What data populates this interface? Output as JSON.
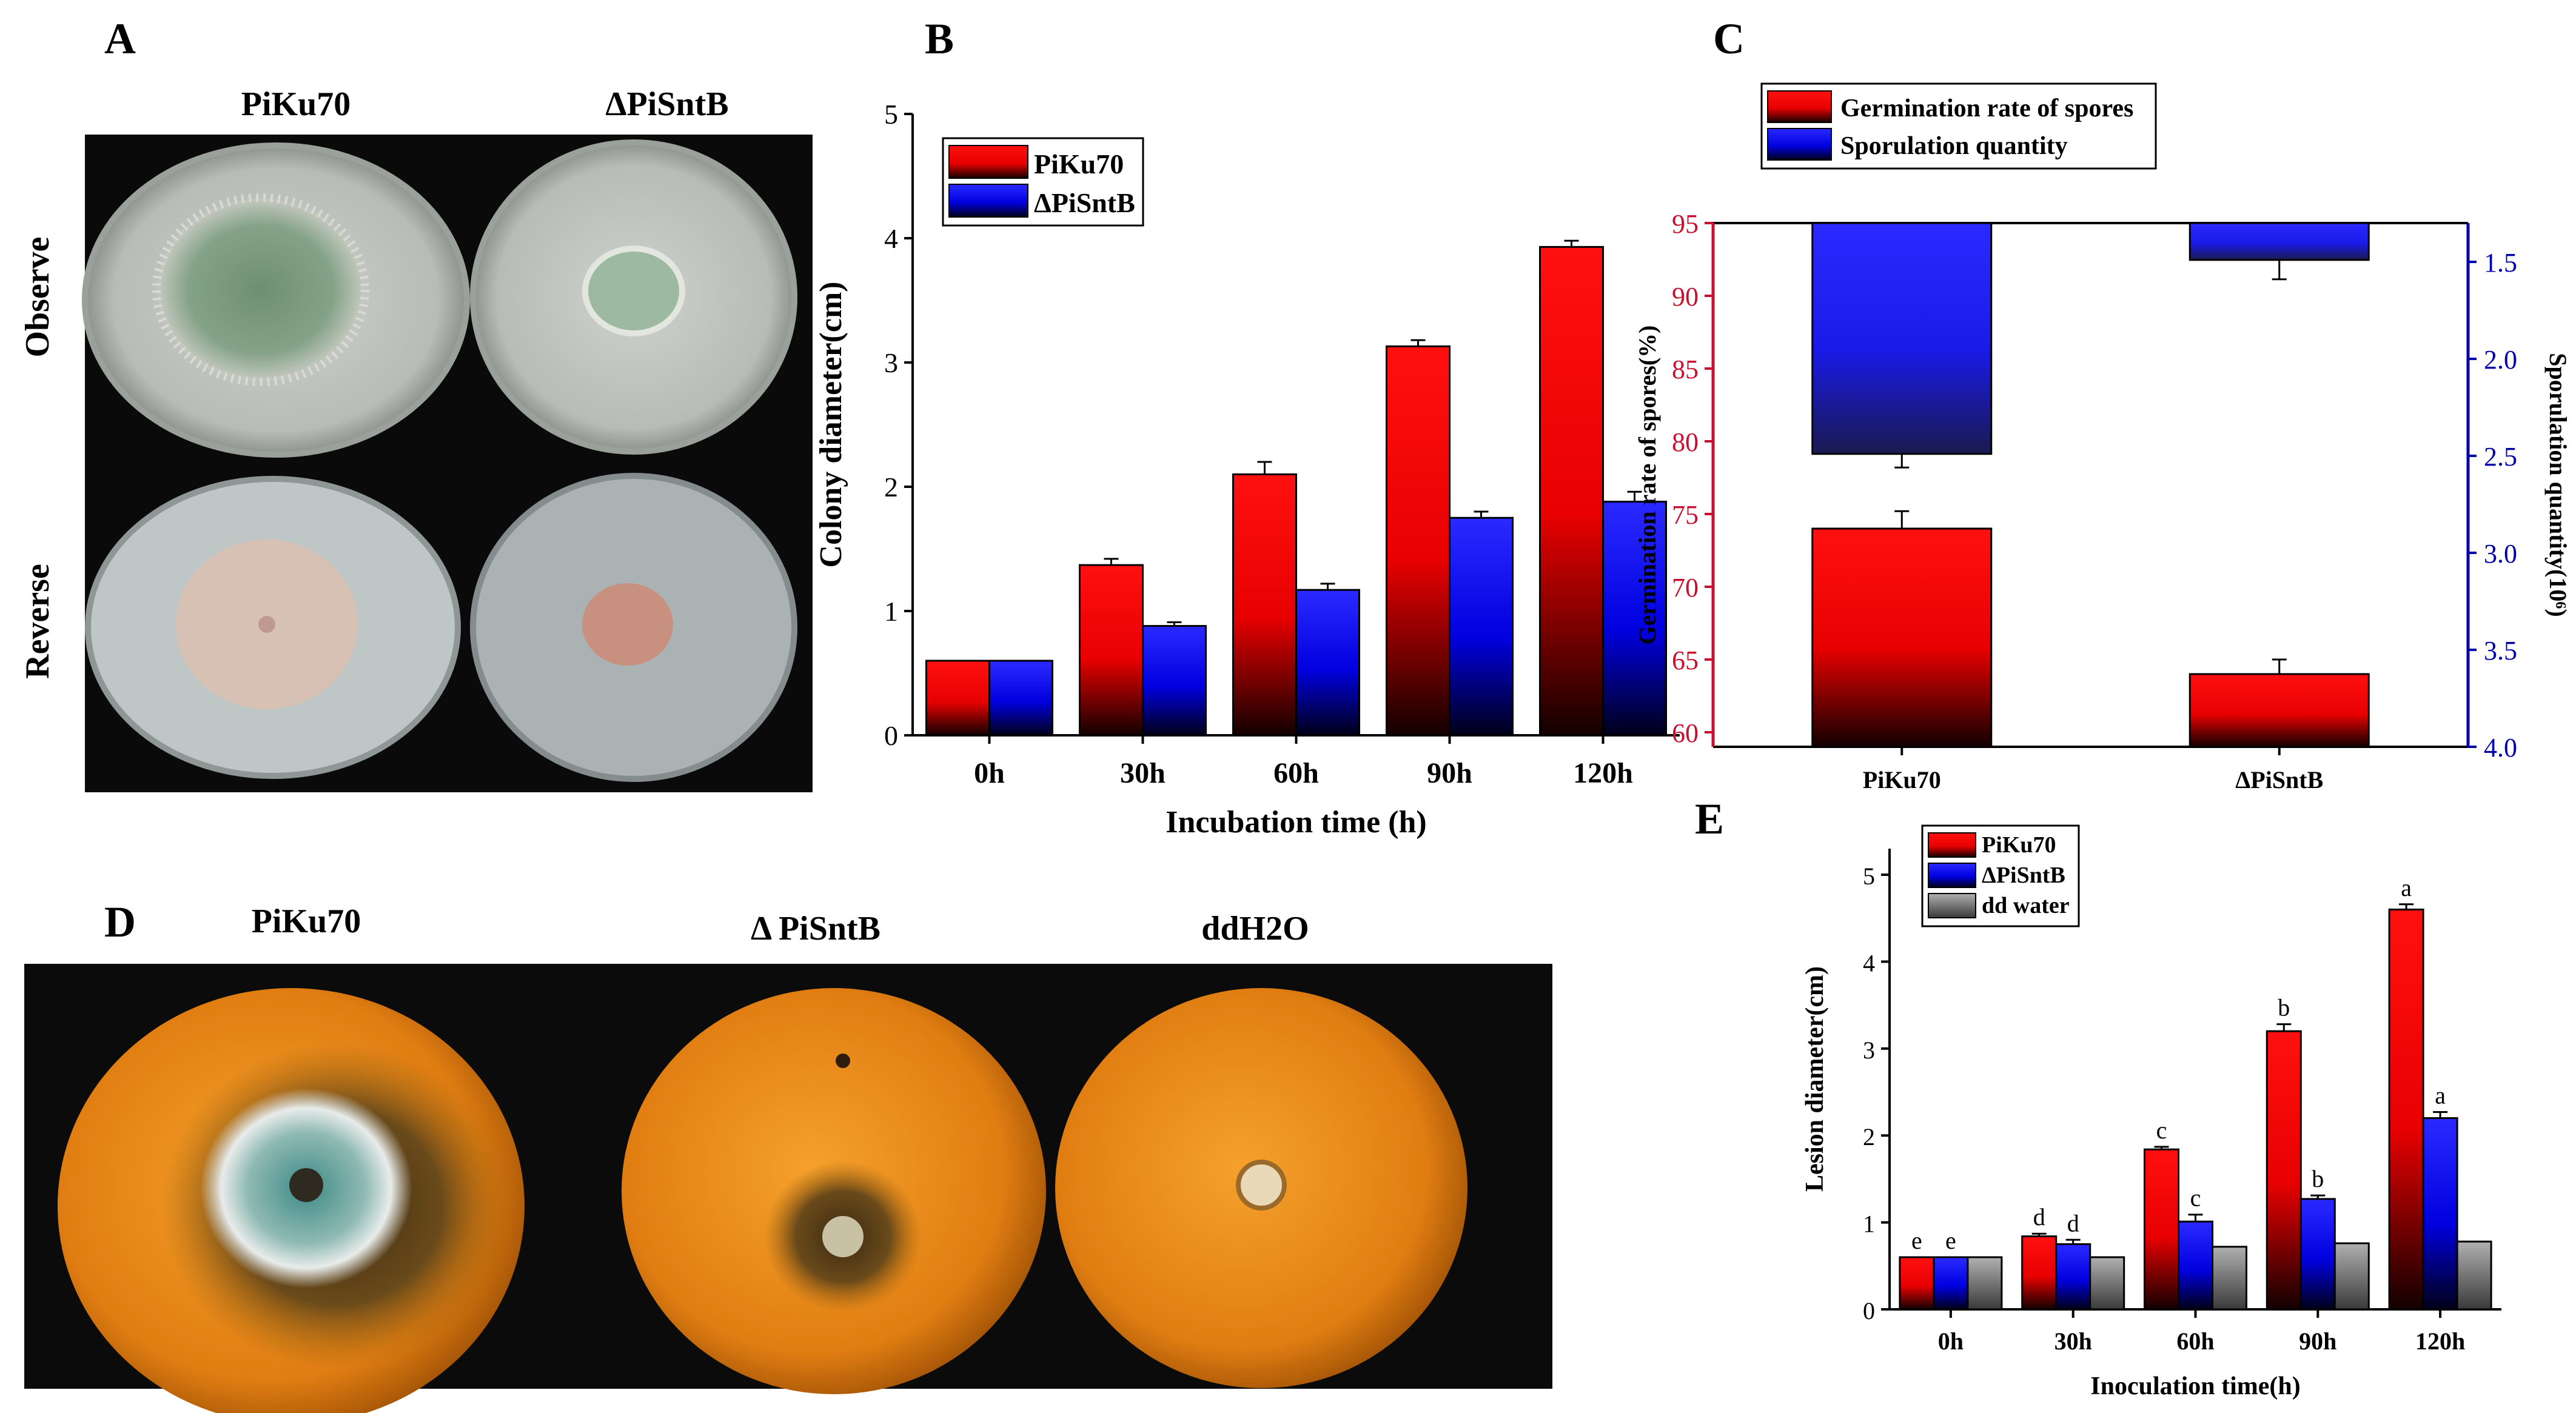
{
  "panels": {
    "A": {
      "letter": "A",
      "col_labels": [
        "PiKu70",
        "ΔPiSntB"
      ],
      "row_labels": [
        "Observe",
        "Reverse"
      ]
    },
    "D": {
      "letter": "D",
      "col_labels": [
        "PiKu70",
        "Δ PiSntB",
        "ddH2O"
      ]
    }
  },
  "colors": {
    "red": "#ff0000",
    "blue": "#1a1aff",
    "gray": "#8a8a8a",
    "dark": "#000000",
    "axis_red": "#c8102e",
    "axis_blue": "#0000aa"
  },
  "chart_data": [
    {
      "panel": "B",
      "type": "bar",
      "title": "",
      "xlabel": "Incubation time (h)",
      "ylabel": "Colony diameter(cm)",
      "ylim": [
        0,
        5
      ],
      "yticks": [
        "0",
        "1",
        "2",
        "3",
        "4",
        "5"
      ],
      "categories": [
        "0h",
        "30h",
        "60h",
        "90h",
        "120h"
      ],
      "legend_position": "top-left",
      "series": [
        {
          "name": "PiKu70",
          "color": "red",
          "values": [
            0.6,
            1.37,
            2.1,
            3.13,
            3.93
          ],
          "errors": [
            0,
            0.05,
            0.1,
            0.05,
            0.05
          ]
        },
        {
          "name": "ΔPiSntB",
          "color": "blue",
          "values": [
            0.6,
            0.88,
            1.17,
            1.75,
            1.88
          ],
          "errors": [
            0,
            0.03,
            0.05,
            0.05,
            0.08
          ]
        }
      ]
    },
    {
      "panel": "C",
      "type": "bar",
      "title": "",
      "categories": [
        "PiKu70",
        "ΔPiSntB"
      ],
      "legend_position": "top",
      "left_axis": {
        "label": "Germination rate of spores(%)",
        "ylim": [
          59,
          95
        ],
        "yticks": [
          "60",
          "65",
          "70",
          "75",
          "80",
          "85",
          "90",
          "95"
        ]
      },
      "right_axis": {
        "label": "Sporulation quantity(10⁶)",
        "ylim": [
          1.3,
          4.0
        ],
        "inverted": true,
        "yticks": [
          "1.5",
          "2.0",
          "2.5",
          "3.0",
          "3.5",
          "4.0"
        ]
      },
      "series": [
        {
          "name": "Germination rate of spores",
          "color": "red",
          "axis": "left",
          "values": [
            74,
            64
          ],
          "errors": [
            1.2,
            1.0
          ]
        },
        {
          "name": "Sporulation quantity",
          "color": "blue",
          "axis": "right",
          "inverted": true,
          "values": [
            2.49,
            1.49
          ],
          "errors": [
            0.07,
            0.1
          ]
        }
      ]
    },
    {
      "panel": "E",
      "type": "bar",
      "title": "",
      "xlabel": "Inoculation time(h)",
      "ylabel": "Lesion diameter(cm)",
      "ylim": [
        0,
        5.3
      ],
      "yticks": [
        "0",
        "1",
        "2",
        "3",
        "4",
        "5"
      ],
      "categories": [
        "0h",
        "30h",
        "60h",
        "90h",
        "120h"
      ],
      "legend_position": "top-left",
      "series": [
        {
          "name": "PiKu70",
          "color": "red",
          "values": [
            0.6,
            0.84,
            1.84,
            3.2,
            4.6
          ],
          "errors": [
            0,
            0.03,
            0.03,
            0.08,
            0.06
          ],
          "letters": [
            "e",
            "d",
            "c",
            "b",
            "a"
          ]
        },
        {
          "name": "ΔPiSntB",
          "color": "blue",
          "values": [
            0.6,
            0.75,
            1.01,
            1.27,
            2.2
          ],
          "errors": [
            0,
            0.05,
            0.08,
            0.04,
            0.07
          ],
          "letters": [
            "e",
            "d",
            "c",
            "b",
            "a"
          ]
        },
        {
          "name": "dd water",
          "color": "gray",
          "values": [
            0.6,
            0.6,
            0.72,
            0.76,
            0.78
          ],
          "errors": [
            0,
            0,
            0,
            0,
            0
          ],
          "letters": [
            "",
            "",
            "",
            "",
            ""
          ]
        }
      ]
    }
  ]
}
